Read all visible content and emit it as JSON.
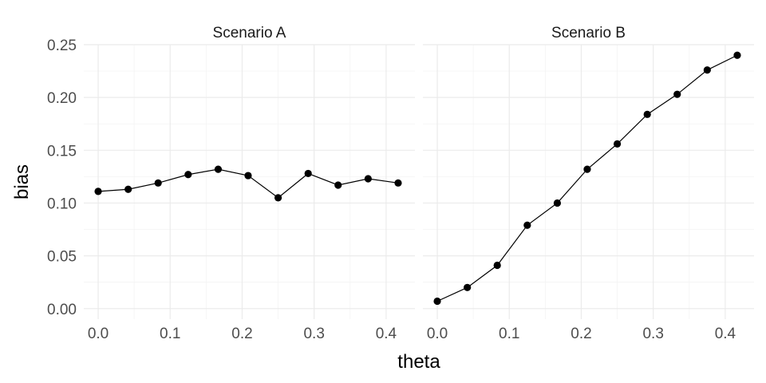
{
  "chart_data": {
    "type": "line",
    "xlabel": "theta",
    "ylabel": "bias",
    "xlim": [
      -0.02,
      0.44
    ],
    "ylim": [
      -0.01,
      0.25
    ],
    "x_ticks": [
      "0.0",
      "0.1",
      "0.2",
      "0.3",
      "0.4"
    ],
    "y_ticks": [
      "0.00",
      "0.05",
      "0.10",
      "0.15",
      "0.20",
      "0.25"
    ],
    "grid": true,
    "panels": [
      {
        "title": "Scenario A",
        "x": [
          0,
          0.0417,
          0.0833,
          0.125,
          0.1667,
          0.2083,
          0.25,
          0.2917,
          0.3333,
          0.375,
          0.4167
        ],
        "y": [
          0.111,
          0.113,
          0.119,
          0.127,
          0.132,
          0.126,
          0.105,
          0.128,
          0.117,
          0.123,
          0.119
        ]
      },
      {
        "title": "Scenario B",
        "x": [
          0,
          0.0417,
          0.0833,
          0.125,
          0.1667,
          0.2083,
          0.25,
          0.2917,
          0.3333,
          0.375,
          0.4167
        ],
        "y": [
          0.007,
          0.02,
          0.041,
          0.079,
          0.1,
          0.132,
          0.156,
          0.184,
          0.203,
          0.226,
          0.24
        ]
      }
    ]
  }
}
